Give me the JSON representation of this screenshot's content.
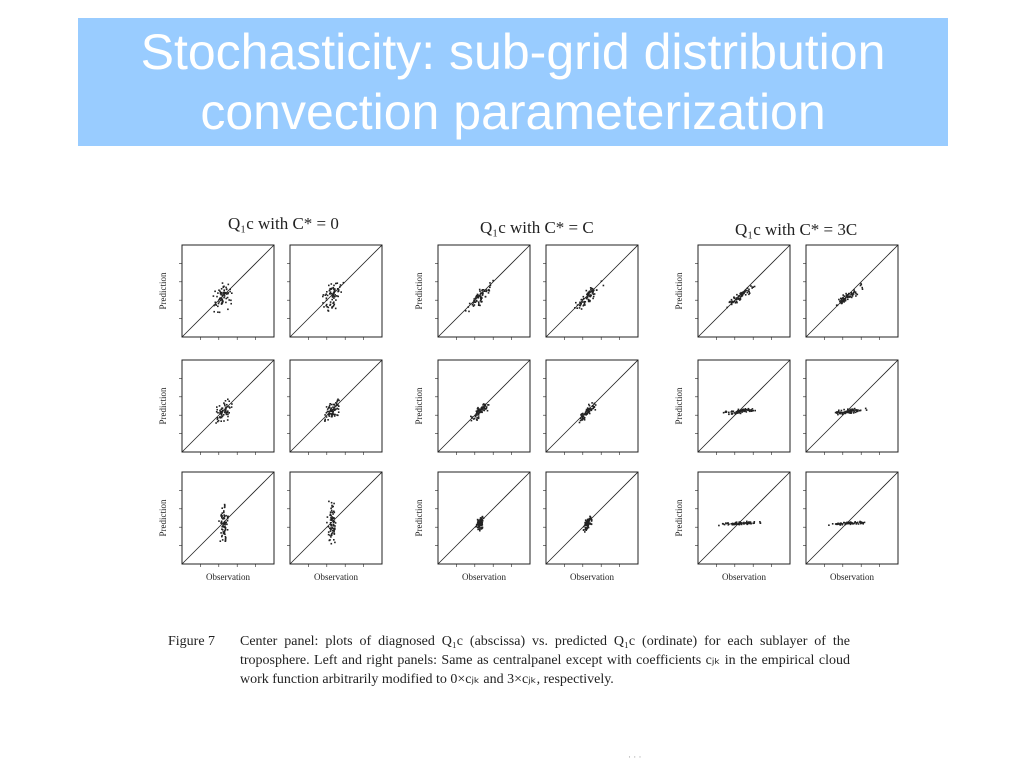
{
  "slide": {
    "title_line1": "Stochasticity: sub-grid distribution",
    "title_line2": "convection parameterization"
  },
  "figure": {
    "column_titles": [
      "Q₁c with C* = 0",
      "Q₁c with C* = C",
      "Q₁c with C* = 3C"
    ],
    "y_axis_label": "Prediction",
    "x_axis_label": "Observation",
    "caption_label": "Figure 7",
    "caption_text": "Center panel: plots of diagnosed Q₁c (abscissa) vs. predicted Q₁c (ordinate) for each sublayer of the troposphere. Left and right panels: Same as centralpanel except with coefficients cⱼₖ in the empirical cloud work function arbitrarily modified to 0×cⱼₖ and 3×cⱼₖ, respectively."
  },
  "colors": {
    "banner": "#99ccff",
    "title_text": "#ffffff",
    "ink": "#222222"
  }
}
